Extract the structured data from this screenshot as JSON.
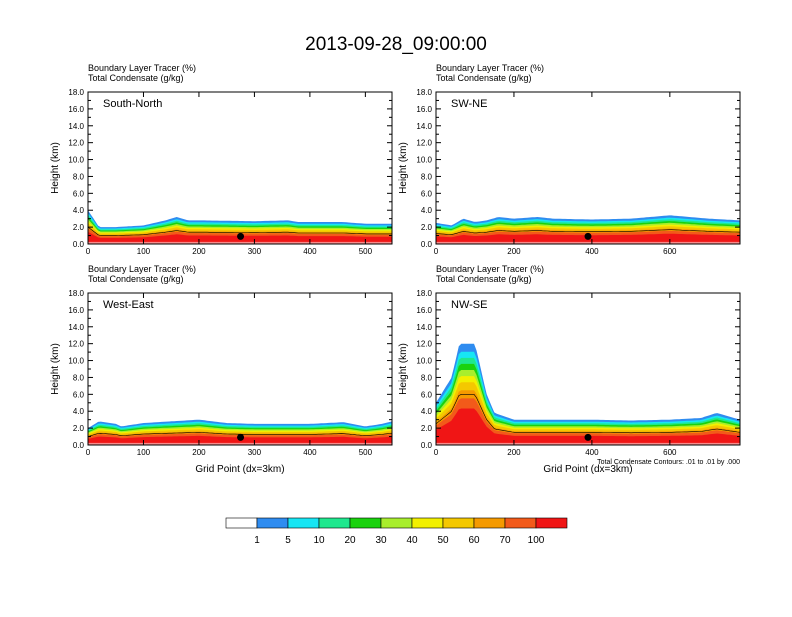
{
  "title": "2013-09-28_09:00:00",
  "colors": {
    "levels": [
      "#ffffff",
      "#2f8cf0",
      "#17e6f4",
      "#1fe88e",
      "#1ad20e",
      "#a8ee2d",
      "#f2f000",
      "#f4c800",
      "#f59a00",
      "#f25a1a",
      "#f01515"
    ],
    "contour": "#000000",
    "terrain": "#ffffff",
    "marker": "#000000"
  },
  "chart_data": [
    {
      "type": "heatmap",
      "panel_label": "South-North",
      "legend_line1": "Boundary Layer Tracer   (%)",
      "legend_line2": "Total Condensate   (g/kg)",
      "ylabel": "Height (km)",
      "xlabel": "",
      "xlim": [
        0,
        548
      ],
      "ylim": [
        0,
        18
      ],
      "x_ticks": [
        0,
        100,
        200,
        300,
        400,
        500
      ],
      "x_tick_labels": [
        "0",
        "100",
        "200",
        "300",
        "400",
        "500"
      ],
      "y_ticks": [
        0,
        2,
        4,
        6,
        8,
        10,
        12,
        14,
        16,
        18
      ],
      "y_tick_labels": [
        "0.0",
        "2.0",
        "4.0",
        "6.0",
        "8.0",
        "10.0",
        "12.0",
        "14.0",
        "16.0",
        "18.0"
      ],
      "marker_x": 275,
      "layer_tops_km": {
        "x": [
          0,
          10,
          20,
          50,
          100,
          140,
          160,
          180,
          200,
          300,
          360,
          380,
          460,
          500,
          548
        ],
        "h": [
          4.0,
          3.0,
          2.0,
          2.0,
          2.2,
          2.8,
          3.2,
          2.8,
          2.8,
          2.7,
          2.8,
          2.6,
          2.6,
          2.4,
          2.4
        ]
      }
    },
    {
      "type": "heatmap",
      "panel_label": "SW-NE",
      "legend_line1": "Boundary Layer Tracer   (%)",
      "legend_line2": "Total Condensate   (g/kg)",
      "ylabel": "Height (km)",
      "xlabel": "",
      "xlim": [
        0,
        780
      ],
      "ylim": [
        0,
        18
      ],
      "x_ticks": [
        0,
        200,
        400,
        600
      ],
      "x_tick_labels": [
        "0",
        "200",
        "400",
        "600"
      ],
      "y_ticks": [
        0,
        2,
        4,
        6,
        8,
        10,
        12,
        14,
        16,
        18
      ],
      "y_tick_labels": [
        "0.0",
        "2.0",
        "4.0",
        "6.0",
        "8.0",
        "10.0",
        "12.0",
        "14.0",
        "16.0",
        "18.0"
      ],
      "marker_x": 390,
      "layer_tops_km": {
        "x": [
          0,
          40,
          70,
          100,
          130,
          160,
          200,
          260,
          300,
          400,
          500,
          600,
          700,
          780
        ],
        "h": [
          2.5,
          2.2,
          3.0,
          2.6,
          2.8,
          3.2,
          3.0,
          3.2,
          3.0,
          2.9,
          3.0,
          3.4,
          3.0,
          2.8
        ]
      }
    },
    {
      "type": "heatmap",
      "panel_label": "West-East",
      "legend_line1": "Boundary Layer Tracer   (%)",
      "legend_line2": "Total Condensate   (g/kg)",
      "ylabel": "Height (km)",
      "xlabel": "Grid Point (dx=3km)",
      "xlim": [
        0,
        548
      ],
      "ylim": [
        0,
        18
      ],
      "x_ticks": [
        0,
        100,
        200,
        300,
        400,
        500
      ],
      "x_tick_labels": [
        "0",
        "100",
        "200",
        "300",
        "400",
        "500"
      ],
      "y_ticks": [
        0,
        2,
        4,
        6,
        8,
        10,
        12,
        14,
        16,
        18
      ],
      "y_tick_labels": [
        "0.0",
        "2.0",
        "4.0",
        "6.0",
        "8.0",
        "10.0",
        "12.0",
        "14.0",
        "16.0",
        "18.0"
      ],
      "marker_x": 275,
      "layer_tops_km": {
        "x": [
          0,
          20,
          50,
          60,
          100,
          150,
          200,
          250,
          300,
          400,
          460,
          500,
          530,
          548
        ],
        "h": [
          2.0,
          2.8,
          2.5,
          2.2,
          2.6,
          2.8,
          3.0,
          2.6,
          2.5,
          2.5,
          2.7,
          2.2,
          2.5,
          2.8
        ]
      }
    },
    {
      "type": "heatmap",
      "panel_label": "NW-SE",
      "legend_line1": "Boundary Layer Tracer   (%)",
      "legend_line2": "Total Condensate   (g/kg)",
      "ylabel": "Height (km)",
      "xlabel": "Grid Point (dx=3km)",
      "contour_note": "Total Condensate Contours: .01 to .01 by .000",
      "xlim": [
        0,
        780
      ],
      "ylim": [
        0,
        18
      ],
      "x_ticks": [
        0,
        200,
        400,
        600
      ],
      "x_tick_labels": [
        "0",
        "200",
        "400",
        "600"
      ],
      "y_ticks": [
        0,
        2,
        4,
        6,
        8,
        10,
        12,
        14,
        16,
        18
      ],
      "y_tick_labels": [
        "0.0",
        "2.0",
        "4.0",
        "6.0",
        "8.0",
        "10.0",
        "12.0",
        "14.0",
        "16.0",
        "18.0"
      ],
      "marker_x": 390,
      "layer_tops_km": {
        "x": [
          0,
          20,
          40,
          60,
          100,
          130,
          150,
          200,
          300,
          400,
          500,
          600,
          680,
          720,
          780
        ],
        "h": [
          5.0,
          6.5,
          8.0,
          12.0,
          12.0,
          6.0,
          3.8,
          3.0,
          3.0,
          3.0,
          2.9,
          3.0,
          3.2,
          3.8,
          3.0
        ]
      }
    }
  ],
  "colorbar": {
    "labels": [
      "1",
      "5",
      "10",
      "20",
      "30",
      "40",
      "50",
      "60",
      "70",
      "100"
    ]
  }
}
